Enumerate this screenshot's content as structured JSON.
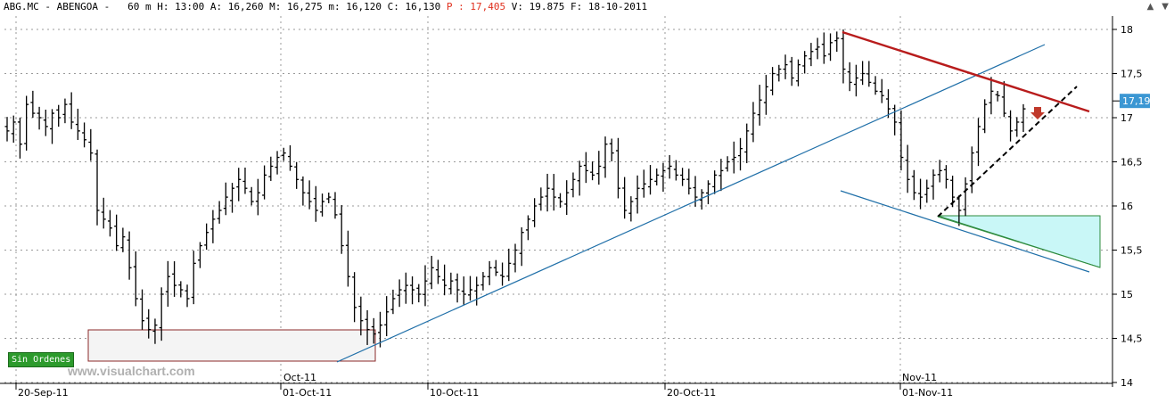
{
  "header": {
    "symbol": "ABG.MC",
    "name": "ABENGOA",
    "timeframe": "60 m",
    "h_label": "H:",
    "h_value": "13:00",
    "a_label": "A:",
    "a_value": "16,260",
    "m_label": "M:",
    "m_value": "16,275",
    "mn_label": "m:",
    "mn_value": "16,120",
    "c_label": "C:",
    "c_value": "16,130",
    "p_label": "P :",
    "p_value": "17,405",
    "v_label": "V:",
    "v_value": "19.875",
    "f_label": "F:",
    "f_value": "18-10-2011"
  },
  "window_controls": [
    "▲",
    "▼"
  ],
  "badge": "Sin Ordenes",
  "watermark": "www.visualchart.com",
  "price_tag": "17,19",
  "colors": {
    "bars": "#000000",
    "blue_trend": "#1f6fa8",
    "red_trend": "#b81c1c",
    "black_dashed": "#000000",
    "cyan_fill": "#c9f7f7",
    "green_edge": "#2e8b3e",
    "price_tag_bg": "#3b97d3",
    "arrow": "#c0392b",
    "support_box_edge": "#8b2a2a",
    "support_box_fill": "#f4f4f4"
  },
  "chart_data": {
    "type": "ohlc",
    "y_ticks": [
      "18",
      "17,5",
      "17",
      "16,5",
      "16",
      "15,5",
      "15",
      "14,5",
      "14"
    ],
    "y_tick_values": [
      18,
      17.5,
      17,
      16.5,
      16,
      15.5,
      15,
      14.5,
      14
    ],
    "ylim": [
      14,
      18.1
    ],
    "x_ticks": [
      "20-Sep-11",
      "01-Oct-11",
      "10-Oct-11",
      "20-Oct-11",
      "01-Nov-11"
    ],
    "x_upper_labels": [
      "Oct-11",
      "Nov-11"
    ],
    "last_price": 17.19,
    "grid": true,
    "closes": [
      16.85,
      16.95,
      16.7,
      17.15,
      17.05,
      17.0,
      16.9,
      17.05,
      17.0,
      17.15,
      16.95,
      16.85,
      16.75,
      16.6,
      15.95,
      15.85,
      15.75,
      15.55,
      15.65,
      15.3,
      14.95,
      14.7,
      14.6,
      14.65,
      15.0,
      15.2,
      15.1,
      15.05,
      14.95,
      15.35,
      15.55,
      15.7,
      15.85,
      15.95,
      16.1,
      16.2,
      16.3,
      16.2,
      16.05,
      16.15,
      16.35,
      16.45,
      16.55,
      16.6,
      16.45,
      16.3,
      16.15,
      16.05,
      15.95,
      16.05,
      16.1,
      15.9,
      15.55,
      15.2,
      14.85,
      14.7,
      14.6,
      14.55,
      14.65,
      14.8,
      14.95,
      15.05,
      15.1,
      15.05,
      15.0,
      15.15,
      15.3,
      15.2,
      15.1,
      15.15,
      15.05,
      15.0,
      15.05,
      15.1,
      15.2,
      15.3,
      15.25,
      15.2,
      15.35,
      15.5,
      15.7,
      15.85,
      16.0,
      16.1,
      16.2,
      16.1,
      16.05,
      16.15,
      16.3,
      16.45,
      16.4,
      16.35,
      16.45,
      16.7,
      16.6,
      16.2,
      15.95,
      16.05,
      16.2,
      16.25,
      16.3,
      16.35,
      16.4,
      16.45,
      16.35,
      16.3,
      16.2,
      16.1,
      16.15,
      16.25,
      16.35,
      16.4,
      16.5,
      16.55,
      16.65,
      16.85,
      17.05,
      17.2,
      17.35,
      17.5,
      17.55,
      17.6,
      17.45,
      17.6,
      17.7,
      17.75,
      17.8,
      17.7,
      17.85,
      17.9,
      17.55,
      17.4,
      17.45,
      17.5,
      17.4,
      17.3,
      17.25,
      17.1,
      16.95,
      16.55,
      16.3,
      16.15,
      16.1,
      16.2,
      16.35,
      16.4,
      16.3,
      16.1,
      15.95,
      16.25,
      16.6,
      16.9,
      17.15,
      17.3,
      17.25,
      17.05,
      16.85,
      16.95,
      17.1
    ]
  }
}
